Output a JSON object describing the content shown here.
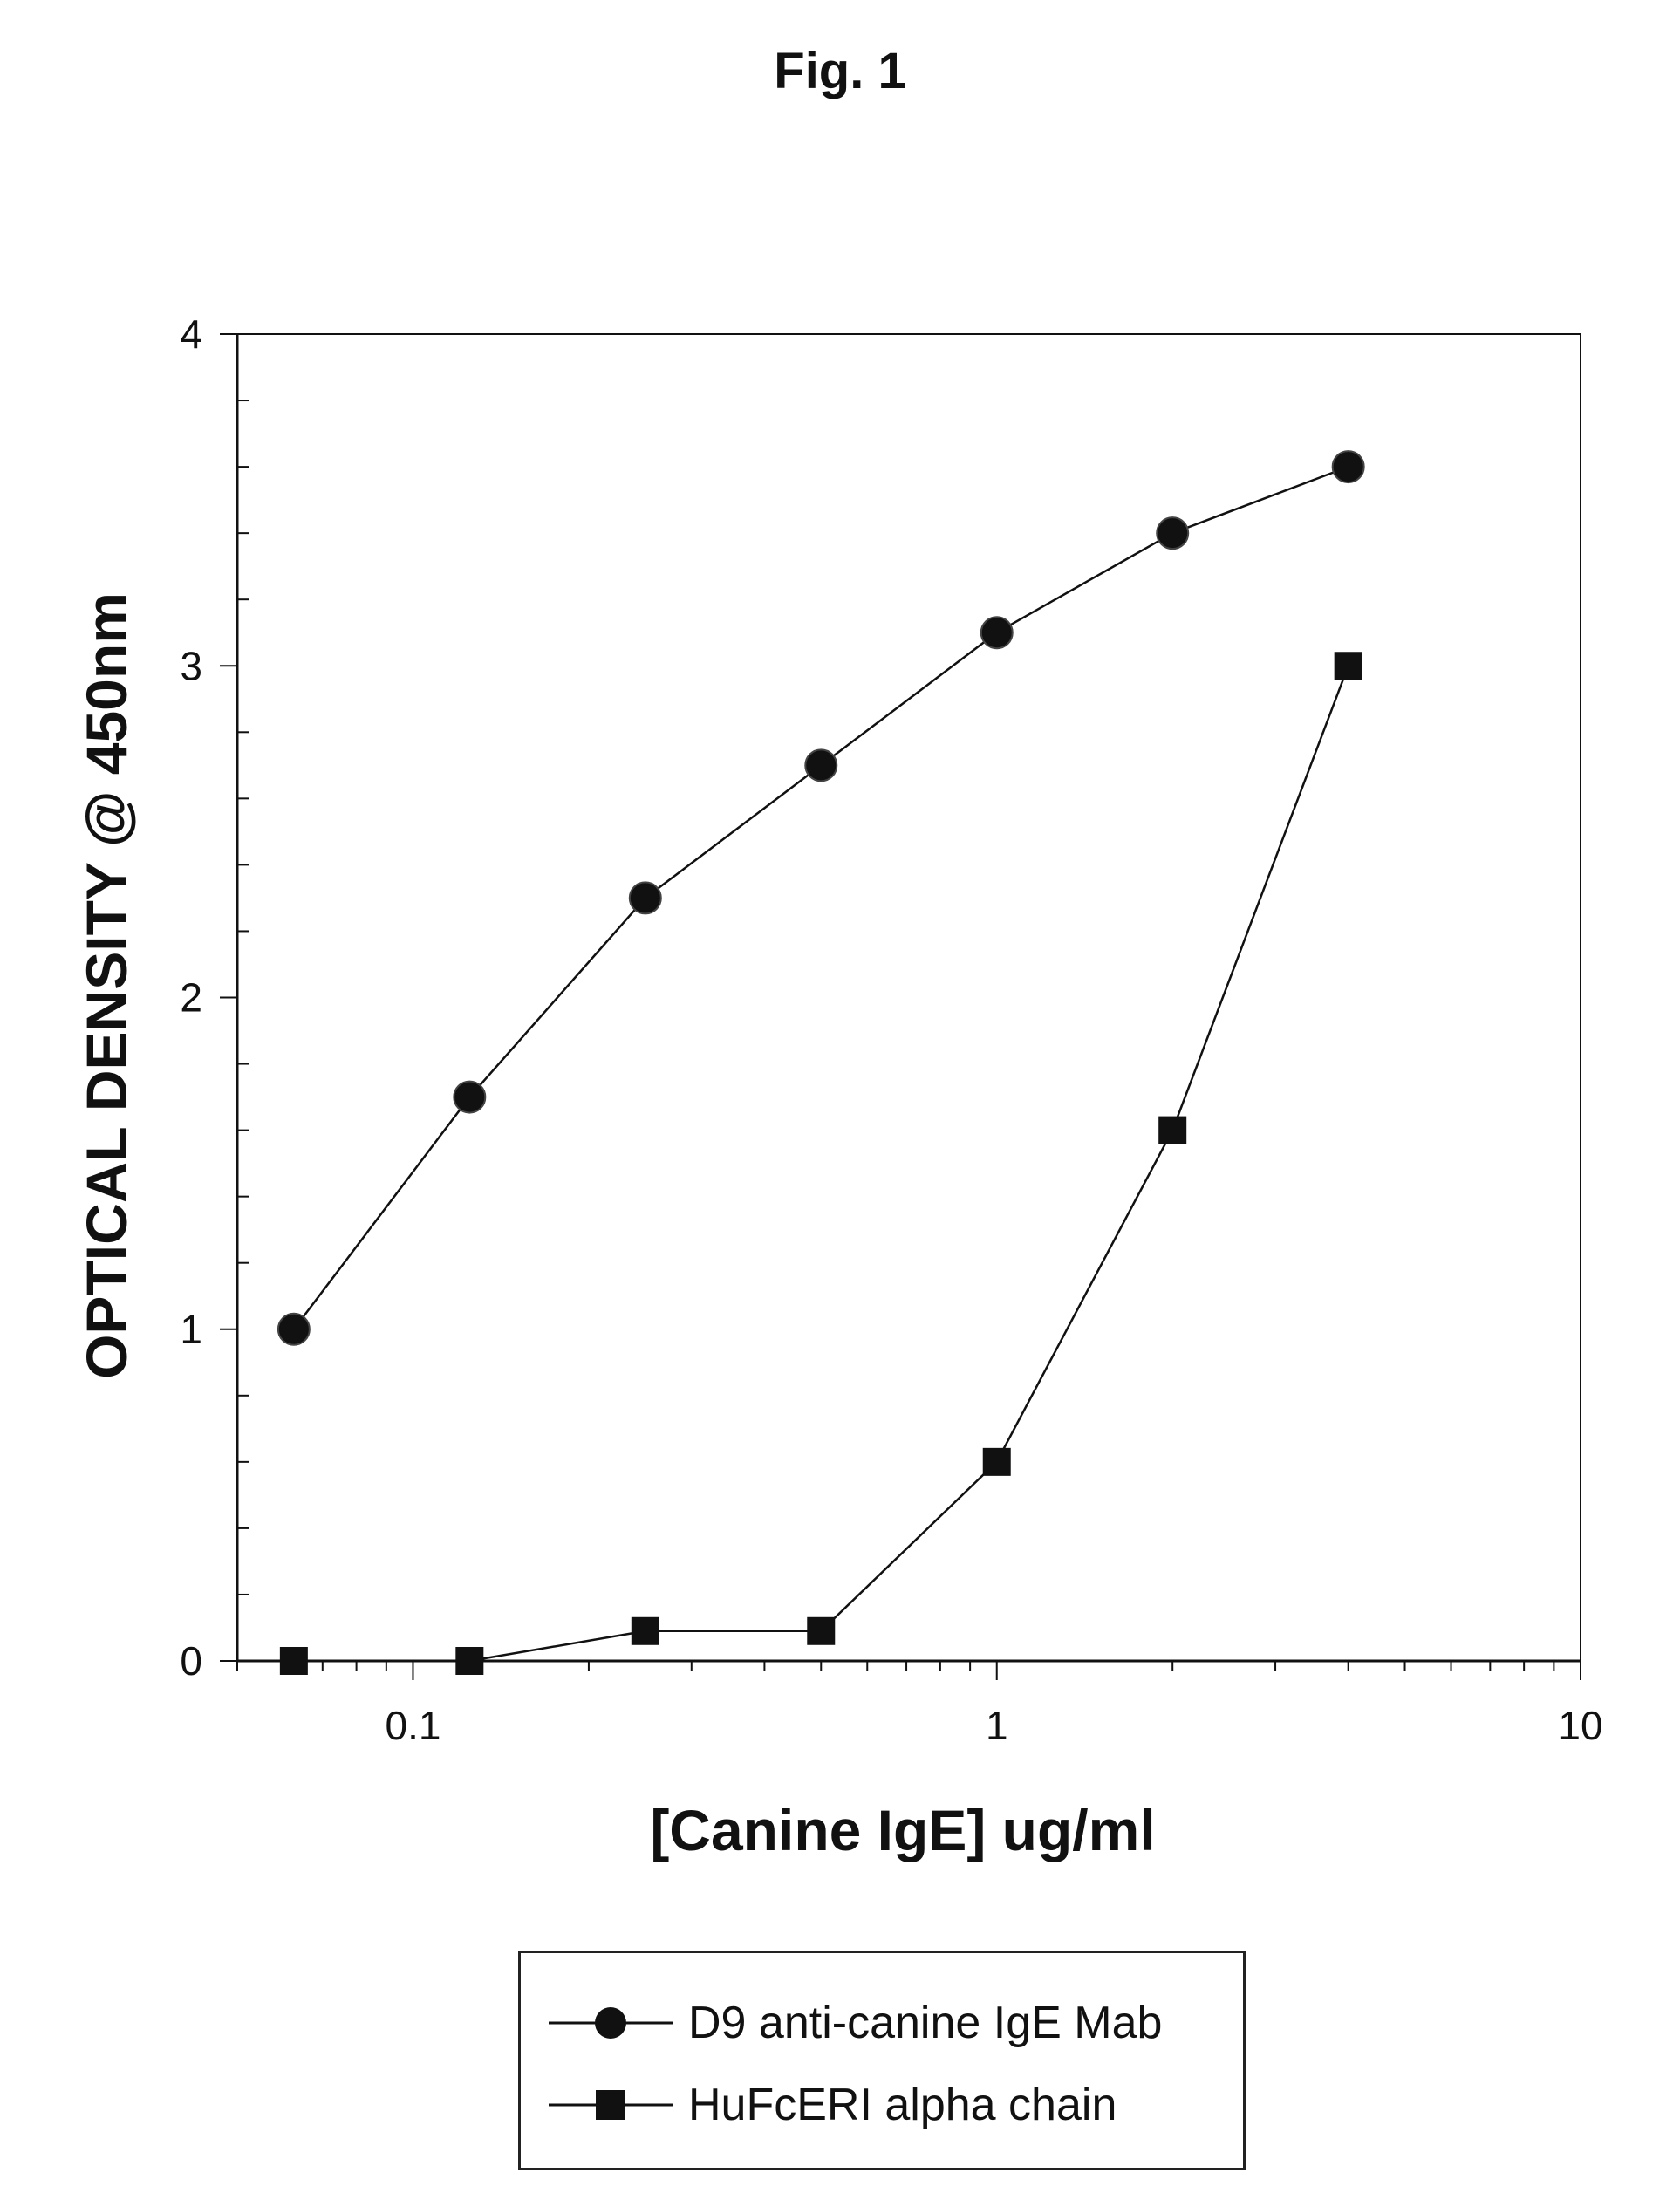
{
  "figure_title": "Fig. 1",
  "chart_data": {
    "type": "line",
    "title": "",
    "xlabel": "[Canine IgE]  ug/ml",
    "ylabel": "OPTICAL DENSITY @ 450nm",
    "x_scale": "log",
    "xlim": [
      0.05,
      10
    ],
    "ylim": [
      0,
      4
    ],
    "x_ticks": [
      0.1,
      1,
      10
    ],
    "x_tick_labels": [
      "0.1",
      "1",
      "10"
    ],
    "y_ticks": [
      0,
      1,
      2,
      3,
      4
    ],
    "y_tick_labels": [
      "0",
      "1",
      "2",
      "3",
      "4"
    ],
    "grid": false,
    "legend_position": "bottom-center",
    "series": [
      {
        "name": "D9 anti-canine IgE Mab",
        "marker": "circle",
        "color": "#111111",
        "x": [
          0.0625,
          0.125,
          0.25,
          0.5,
          1,
          2,
          4
        ],
        "y": [
          1.0,
          1.7,
          2.3,
          2.7,
          3.1,
          3.4,
          3.6
        ]
      },
      {
        "name": "HuFcERI alpha chain",
        "marker": "square",
        "color": "#111111",
        "x": [
          0.0625,
          0.125,
          0.25,
          0.5,
          1,
          2,
          4
        ],
        "y": [
          0.0,
          0.0,
          0.09,
          0.09,
          0.6,
          1.6,
          3.0
        ]
      }
    ]
  }
}
